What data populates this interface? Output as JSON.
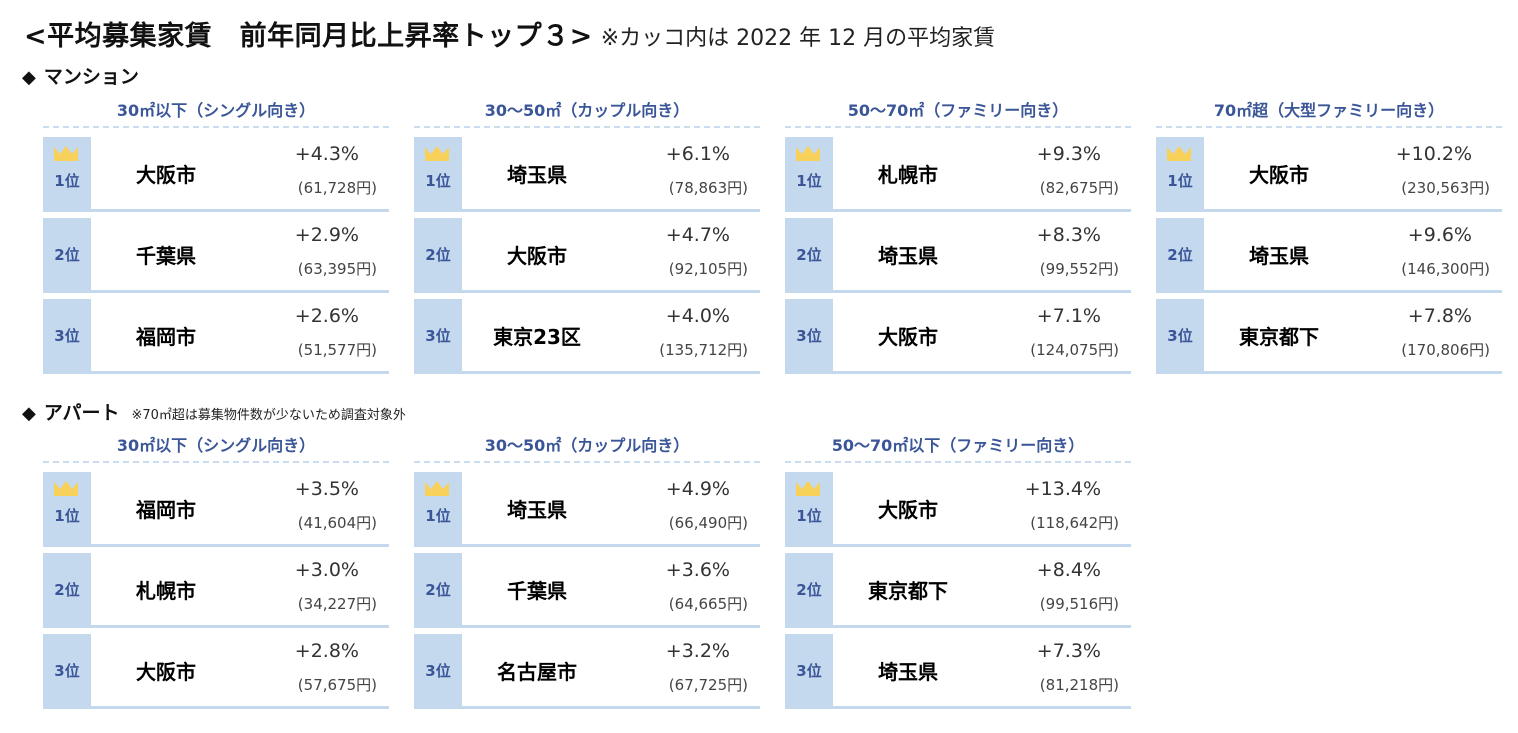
{
  "title": {
    "main": "<平均募集家賃　前年同月比上昇率トップ３>",
    "note": "※カッコ内は 2022 年 12 月の平均家賃"
  },
  "colors": {
    "accent_text": "#3b5698",
    "rank_bg": "#c5d9ee",
    "divider": "#c5d9ee",
    "crown": "#f7d15a"
  },
  "mansion": {
    "diamond": "◆",
    "label": "マンション",
    "groups": [
      {
        "title": "30㎡以下（シングル向き）",
        "rows": [
          {
            "rank": "1位",
            "city": "大阪市",
            "pct": "+4.3%",
            "rent": "(61,728円)"
          },
          {
            "rank": "2位",
            "city": "千葉県",
            "pct": "+2.9%",
            "rent": "(63,395円)"
          },
          {
            "rank": "3位",
            "city": "福岡市",
            "pct": "+2.6%",
            "rent": "(51,577円)"
          }
        ]
      },
      {
        "title": "30～50㎡（カップル向き）",
        "rows": [
          {
            "rank": "1位",
            "city": "埼玉県",
            "pct": "+6.1%",
            "rent": "(78,863円)"
          },
          {
            "rank": "2位",
            "city": "大阪市",
            "pct": "+4.7%",
            "rent": "(92,105円)"
          },
          {
            "rank": "3位",
            "city": "東京23区",
            "pct": "+4.0%",
            "rent": "(135,712円)"
          }
        ]
      },
      {
        "title": "50～70㎡（ファミリー向き）",
        "rows": [
          {
            "rank": "1位",
            "city": "札幌市",
            "pct": "+9.3%",
            "rent": "(82,675円)"
          },
          {
            "rank": "2位",
            "city": "埼玉県",
            "pct": "+8.3%",
            "rent": "(99,552円)"
          },
          {
            "rank": "3位",
            "city": "大阪市",
            "pct": "+7.1%",
            "rent": "(124,075円)"
          }
        ]
      },
      {
        "title": "70㎡超（大型ファミリー向き）",
        "rows": [
          {
            "rank": "1位",
            "city": "大阪市",
            "pct": "+10.2%",
            "rent": "(230,563円)"
          },
          {
            "rank": "2位",
            "city": "埼玉県",
            "pct": "+9.6%",
            "rent": "(146,300円)"
          },
          {
            "rank": "3位",
            "city": "東京都下",
            "pct": "+7.8%",
            "rent": "(170,806円)"
          }
        ]
      }
    ]
  },
  "apartment": {
    "diamond": "◆",
    "label": "アパート",
    "note": "※70㎡超は募集物件数が少ないため調査対象外",
    "groups": [
      {
        "title": "30㎡以下（シングル向き）",
        "rows": [
          {
            "rank": "1位",
            "city": "福岡市",
            "pct": "+3.5%",
            "rent": "(41,604円)"
          },
          {
            "rank": "2位",
            "city": "札幌市",
            "pct": "+3.0%",
            "rent": "(34,227円)"
          },
          {
            "rank": "3位",
            "city": "大阪市",
            "pct": "+2.8%",
            "rent": "(57,675円)"
          }
        ]
      },
      {
        "title": "30～50㎡（カップル向き）",
        "rows": [
          {
            "rank": "1位",
            "city": "埼玉県",
            "pct": "+4.9%",
            "rent": "(66,490円)"
          },
          {
            "rank": "2位",
            "city": "千葉県",
            "pct": "+3.6%",
            "rent": "(64,665円)"
          },
          {
            "rank": "3位",
            "city": "名古屋市",
            "pct": "+3.2%",
            "rent": "(67,725円)"
          }
        ]
      },
      {
        "title": "50～70㎡以下（ファミリー向き）",
        "rows": [
          {
            "rank": "1位",
            "city": "大阪市",
            "pct": "+13.4%",
            "rent": "(118,642円)"
          },
          {
            "rank": "2位",
            "city": "東京都下",
            "pct": "+8.4%",
            "rent": "(99,516円)"
          },
          {
            "rank": "3位",
            "city": "埼玉県",
            "pct": "+7.3%",
            "rent": "(81,218円)"
          }
        ]
      }
    ]
  }
}
